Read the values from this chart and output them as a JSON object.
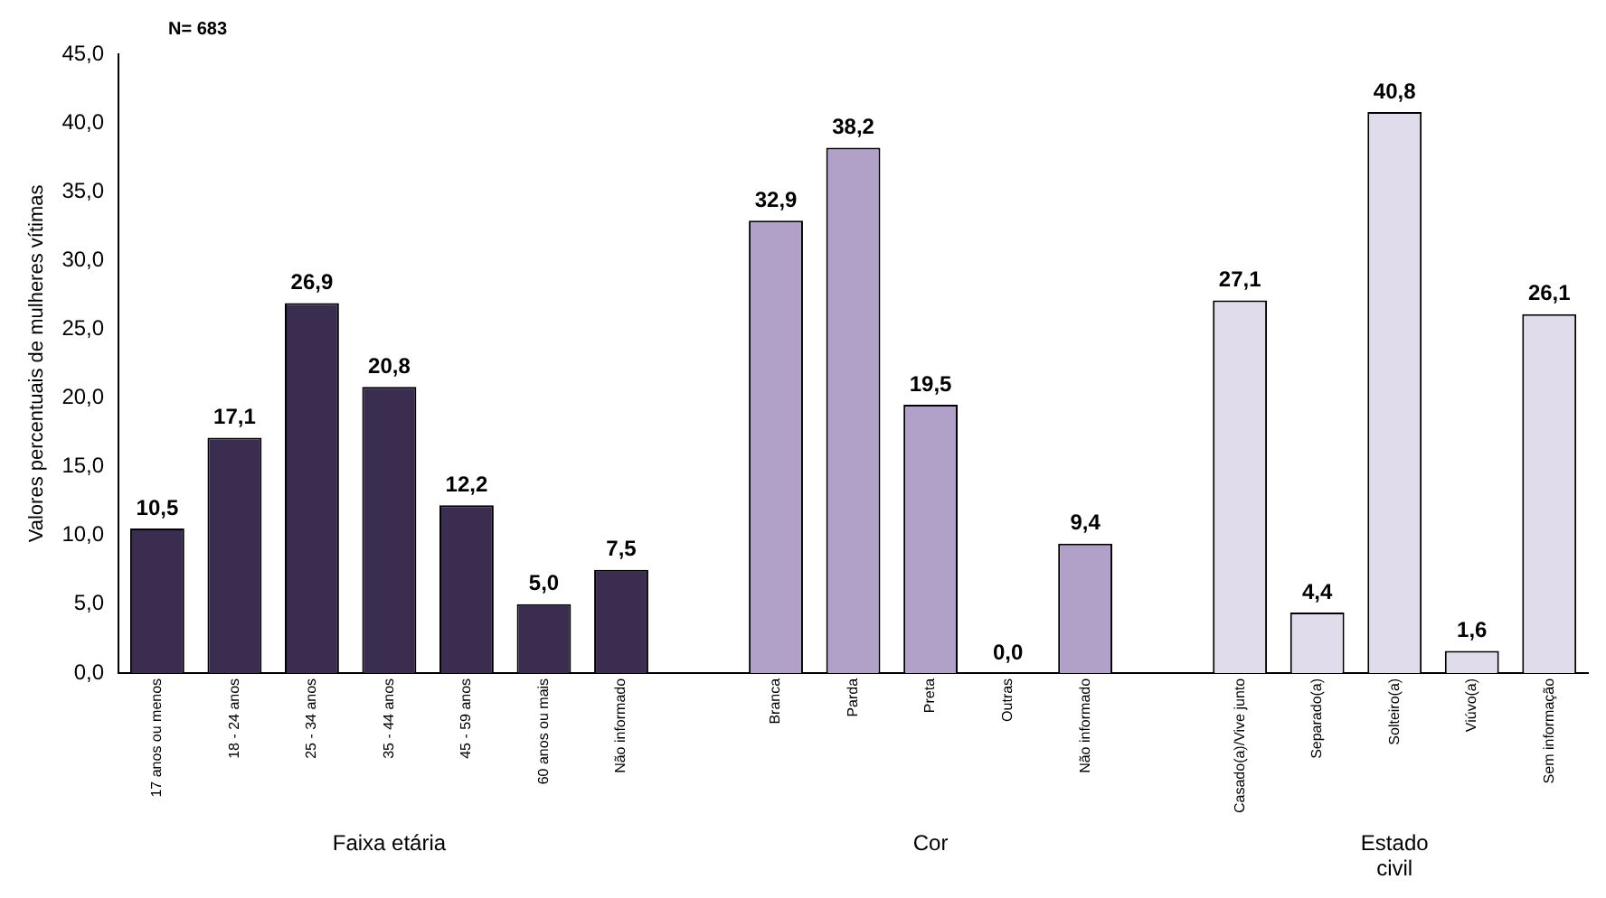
{
  "chart_data": {
    "type": "bar",
    "ylabel": "Valores percentuais de mulheres vítimas",
    "categories": [
      "17 anos ou menos",
      "18 - 24 anos",
      "25 - 34 anos",
      "35 - 44 anos",
      "45 - 59 anos",
      "60 anos ou mais",
      "Não informado",
      null,
      "Branca",
      "Parda",
      "Preta",
      "Outras",
      "Não informado",
      null,
      "Casado(a)/Vive junto",
      "Separado(a)",
      "Solteiro(a)",
      "Viúvo(a)",
      "Sem informação"
    ],
    "values": [
      10.5,
      17.1,
      26.9,
      20.8,
      12.2,
      5.0,
      7.5,
      null,
      32.9,
      38.2,
      19.5,
      0.0,
      9.4,
      null,
      27.1,
      4.4,
      40.8,
      1.6,
      26.1
    ],
    "value_labels": [
      "10,5",
      "17,1",
      "26,9",
      "20,8",
      "12,2",
      "5,0",
      "7,5",
      null,
      "32,9",
      "38,2",
      "19,5",
      "0,0",
      "9,4",
      null,
      "27,1",
      "4,4",
      "40,8",
      "1,6",
      "26,1"
    ],
    "colors": [
      "#3b2d50",
      "#3b2d50",
      "#3b2d50",
      "#3b2d50",
      "#3b2d50",
      "#3b2d50",
      "#3b2d50",
      "#ffffff",
      "#b1a1c9",
      "#b1a1c9",
      "#b1a1c9",
      "#b1a1c9",
      "#b1a1c9",
      "#ffffff",
      "#e1dcec",
      "#e1dcec",
      "#e1dcec",
      "#e1dcec",
      "#e1dcec"
    ],
    "ylim": [
      0,
      45
    ],
    "yticks": [
      {
        "value": 0,
        "label": "0,0"
      },
      {
        "value": 5,
        "label": "5,0"
      },
      {
        "value": 10,
        "label": "10,0"
      },
      {
        "value": 15,
        "label": "15,0"
      },
      {
        "value": 20,
        "label": "20,0"
      },
      {
        "value": 25,
        "label": "25,0"
      },
      {
        "value": 30,
        "label": "30,0"
      },
      {
        "value": 35,
        "label": "35,0"
      },
      {
        "value": 40,
        "label": "40,0"
      },
      {
        "value": 45,
        "label": "45,0"
      }
    ],
    "grid": false,
    "legend": false,
    "annotations": [
      "N= 683",
      "Faixa etária",
      "Cor",
      "Estado civil"
    ]
  }
}
